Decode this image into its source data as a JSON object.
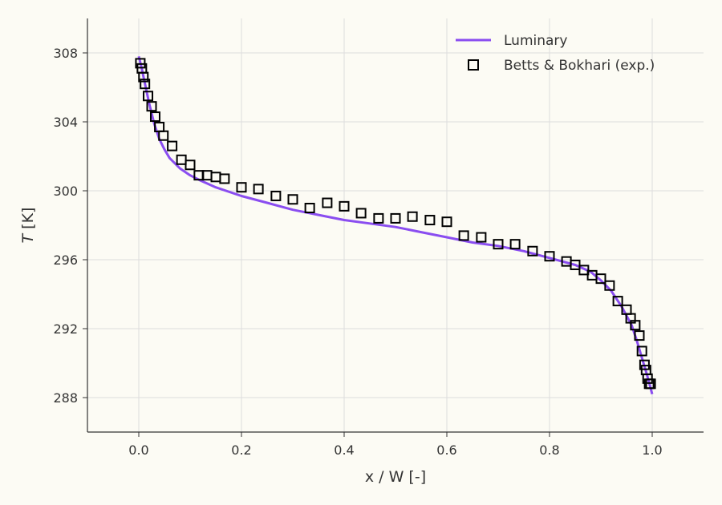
{
  "chart_data": {
    "type": "line",
    "xlabel": "x / W [-]",
    "ylabel_italic": "T",
    "ylabel_unit": " [K]",
    "xlim": [
      -0.1,
      1.1
    ],
    "ylim": [
      286,
      310
    ],
    "xticks": [
      0.0,
      0.2,
      0.4,
      0.6,
      0.8,
      1.0
    ],
    "xtick_labels": [
      "0.0",
      "0.2",
      "0.4",
      "0.6",
      "0.8",
      "1.0"
    ],
    "yticks": [
      288,
      292,
      296,
      300,
      304,
      308
    ],
    "ytick_labels": [
      "288",
      "292",
      "296",
      "300",
      "304",
      "308"
    ],
    "grid": true,
    "legend_position": "top-right",
    "series": [
      {
        "name": "Luminary",
        "kind": "line",
        "color": "#8a4df0",
        "x": [
          0.0,
          0.005,
          0.01,
          0.015,
          0.02,
          0.03,
          0.04,
          0.05,
          0.06,
          0.08,
          0.1,
          0.12,
          0.15,
          0.2,
          0.25,
          0.3,
          0.35,
          0.4,
          0.45,
          0.5,
          0.55,
          0.6,
          0.65,
          0.7,
          0.75,
          0.8,
          0.85,
          0.88,
          0.9,
          0.92,
          0.94,
          0.96,
          0.97,
          0.98,
          0.99,
          1.0
        ],
        "y": [
          307.8,
          307.2,
          306.5,
          305.8,
          305.1,
          303.9,
          303.0,
          302.4,
          301.9,
          301.3,
          300.9,
          300.6,
          300.2,
          299.7,
          299.3,
          298.9,
          298.6,
          298.3,
          298.1,
          297.9,
          297.6,
          297.3,
          297.0,
          296.8,
          296.5,
          296.1,
          295.7,
          295.3,
          294.8,
          294.2,
          293.3,
          292.2,
          291.3,
          290.3,
          289.3,
          288.2
        ]
      },
      {
        "name": "Betts & Bokhari (exp.)",
        "kind": "markers",
        "color": "#000000",
        "x": [
          0.003,
          0.006,
          0.009,
          0.012,
          0.018,
          0.025,
          0.032,
          0.04,
          0.048,
          0.065,
          0.083,
          0.1,
          0.117,
          0.133,
          0.15,
          0.167,
          0.2,
          0.233,
          0.267,
          0.3,
          0.333,
          0.367,
          0.4,
          0.433,
          0.467,
          0.5,
          0.533,
          0.567,
          0.6,
          0.633,
          0.667,
          0.7,
          0.733,
          0.767,
          0.8,
          0.833,
          0.85,
          0.867,
          0.883,
          0.9,
          0.917,
          0.933,
          0.95,
          0.958,
          0.967,
          0.975,
          0.98,
          0.985,
          0.988,
          0.991,
          0.994,
          0.997
        ],
        "y": [
          307.4,
          307.1,
          306.6,
          306.2,
          305.5,
          304.9,
          304.3,
          303.7,
          303.2,
          302.6,
          301.8,
          301.5,
          300.9,
          300.9,
          300.8,
          300.7,
          300.2,
          300.1,
          299.7,
          299.5,
          299.0,
          299.3,
          299.1,
          298.7,
          298.4,
          298.4,
          298.5,
          298.3,
          298.2,
          297.4,
          297.3,
          296.9,
          296.9,
          296.5,
          296.2,
          295.9,
          295.7,
          295.4,
          295.1,
          294.9,
          294.5,
          293.6,
          293.1,
          292.6,
          292.2,
          291.6,
          290.7,
          289.9,
          289.6,
          289.1,
          288.8,
          288.8
        ]
      }
    ]
  }
}
